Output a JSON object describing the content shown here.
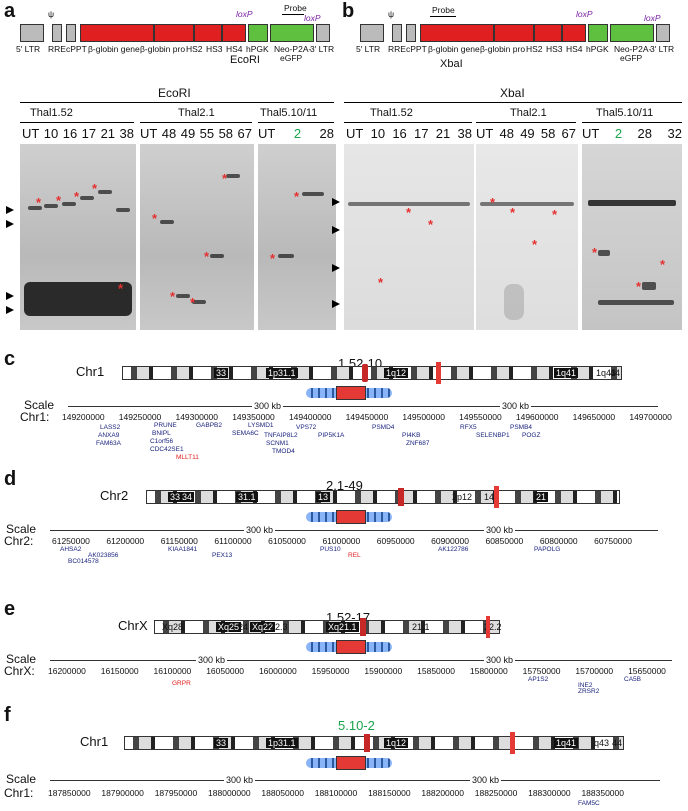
{
  "panels": {
    "a": "a",
    "b": "b",
    "c": "c",
    "d": "d",
    "e": "e",
    "f": "f"
  },
  "vector_labels": {
    "ltr5": "5′ LTR",
    "rre": "RRE",
    "cppt": "cPPT",
    "bglobin_gene": "β-globin gene",
    "bglobin_pro": "β-globin pro",
    "hs2": "HS2",
    "hs3": "HS3",
    "hs4": "HS4",
    "hpgk": "hPGK",
    "neo": "Neo-P2A-",
    "egfp": "eGFP",
    "ltr3": "3′ LTR",
    "loxp": "loxP",
    "probe": "Probe",
    "psi": "ψ"
  },
  "enzymes": {
    "a": "EcoRI",
    "b": "XbaI"
  },
  "blot_a": {
    "enzyme": "EcoRI",
    "groups": [
      "Thal1.52",
      "Thal2.1",
      "Thal5.10/11"
    ],
    "lanes_g1": [
      "UT",
      "10",
      "16",
      "17",
      "21",
      "38"
    ],
    "lanes_g2": [
      "UT",
      "48",
      "49",
      "55",
      "58",
      "67"
    ],
    "lanes_g3": [
      "UT",
      "2",
      "28"
    ],
    "green_lane": "2"
  },
  "blot_b": {
    "enzyme": "XbaI",
    "groups": [
      "Thal1.52",
      "Thal2.1",
      "Thal5.10/11"
    ],
    "lanes_g1": [
      "UT",
      "10",
      "16",
      "17",
      "21",
      "38"
    ],
    "lanes_g2": [
      "UT",
      "48",
      "49",
      "58",
      "67"
    ],
    "lanes_g3": [
      "UT",
      "2",
      "28",
      "32"
    ],
    "green_lane": "2"
  },
  "c": {
    "chr": "Chr1",
    "title": "1.52-10",
    "scale": "Scale",
    "scale_label": "300 kb",
    "chr_label": "Chr1:",
    "bands": [
      "33",
      "1p31.1",
      "1q12",
      "1q41",
      "1q43",
      "44"
    ],
    "ticks": [
      "149200000",
      "149250000",
      "149300000",
      "149350000",
      "149400000",
      "149450000",
      "149500000",
      "149550000",
      "149600000",
      "149650000",
      "149700000"
    ],
    "genes": [
      "LASS2",
      "PRUNE",
      "ANXA9",
      "FAM63A",
      "BNIPL",
      "C1orf56",
      "CDC42SE1",
      "MLLT11",
      "GABPB2",
      "SEMA6C",
      "TNFAIP8L2",
      "VPS72",
      "PIP5K1A",
      "SCNM1",
      "TMOD4",
      "PSMD4",
      "ZNF687",
      "PI4KB",
      "RFX5",
      "SELENBP1",
      "PSMB4",
      "POGZ",
      "LYSMD1"
    ]
  },
  "d": {
    "chr": "Chr2",
    "title": "2.1-49",
    "scale": "Scale",
    "scale_label": "300 kb",
    "chr_label": "Chr2:",
    "bands": [
      "33",
      "34",
      "31.1",
      "13",
      "2p12",
      "14",
      "21"
    ],
    "ticks": [
      "61250000",
      "61200000",
      "61150000",
      "61100000",
      "61050000",
      "61000000",
      "60950000",
      "60900000",
      "60850000",
      "60800000",
      "60750000"
    ],
    "genes": [
      "AHSA2",
      "AK023856",
      "BC014578",
      "KIAA1841",
      "PEX13",
      "PUS10",
      "REL",
      "AK122786",
      "PAPOLG"
    ]
  },
  "e": {
    "chr": "ChrX",
    "title": "1.52-17",
    "scale": "Scale",
    "scale_label": "300 kb",
    "chr_label": "ChrX:",
    "bands": [
      "Xq28",
      "Xq25",
      "24",
      "Xq22",
      "22.3",
      "Xq21.1",
      "21.1",
      "22.2"
    ],
    "ticks": [
      "16200000",
      "16150000",
      "16100000",
      "16050000",
      "16000000",
      "15950000",
      "15900000",
      "15850000",
      "15800000",
      "15750000",
      "15700000",
      "15650000"
    ],
    "genes": [
      "GRPR",
      "AP1S2",
      "CA5B",
      "INE2",
      "ZRSR2"
    ]
  },
  "f": {
    "chr": "Chr1",
    "title": "5.10-2",
    "scale": "Scale",
    "scale_label": "300 kb",
    "chr_label": "Chr1:",
    "bands": [
      "33",
      "1p31.1",
      "1q12",
      "1q41",
      "q43",
      "44"
    ],
    "ticks": [
      "187850000",
      "187900000",
      "187950000",
      "188000000",
      "188050000",
      "188100000",
      "188150000",
      "188200000",
      "188250000",
      "188300000",
      "188350000"
    ],
    "genes": [
      "FAM5C"
    ]
  }
}
